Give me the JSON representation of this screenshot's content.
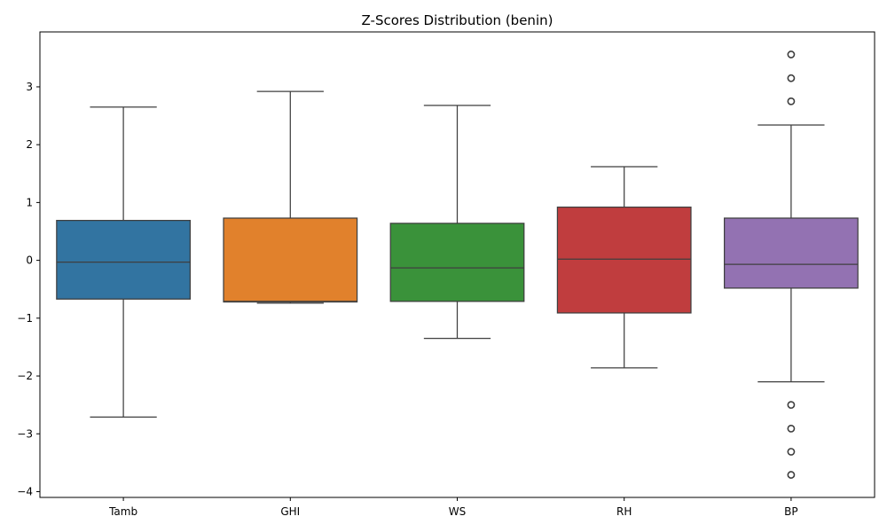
{
  "chart_data": {
    "type": "box",
    "title": "Z-Scores Distribution (benin)",
    "xlabel": "",
    "ylabel": "",
    "ylim": [
      -4.1,
      3.95
    ],
    "yticks": [
      -4,
      -3,
      -2,
      -1,
      0,
      1,
      2,
      3
    ],
    "ytick_labels": [
      "−4",
      "−3",
      "−2",
      "−1",
      "0",
      "1",
      "2",
      "3"
    ],
    "grid": false,
    "categories": [
      "Tamb",
      "GHI",
      "WS",
      "RH",
      "BP"
    ],
    "boxes": [
      {
        "name": "Tamb",
        "color": "#3274a1",
        "whisker_low": -2.71,
        "q1": -0.67,
        "median": -0.03,
        "q3": 0.69,
        "whisker_high": 2.65,
        "outliers": []
      },
      {
        "name": "GHI",
        "color": "#e1812c",
        "whisker_low": -0.74,
        "q1": -0.72,
        "median": -0.71,
        "q3": 0.73,
        "whisker_high": 2.92,
        "outliers": []
      },
      {
        "name": "WS",
        "color": "#3a923a",
        "whisker_low": -1.35,
        "q1": -0.71,
        "median": -0.13,
        "q3": 0.64,
        "whisker_high": 2.68,
        "outliers": []
      },
      {
        "name": "RH",
        "color": "#c03d3e",
        "whisker_low": -1.86,
        "q1": -0.91,
        "median": 0.02,
        "q3": 0.92,
        "whisker_high": 1.62,
        "outliers": []
      },
      {
        "name": "BP",
        "color": "#9372b2",
        "whisker_low": -2.1,
        "q1": -0.48,
        "median": -0.07,
        "q3": 0.73,
        "whisker_high": 2.34,
        "outliers": [
          3.56,
          3.15,
          2.75,
          -2.5,
          -2.91,
          -3.31,
          -3.71
        ]
      }
    ]
  }
}
